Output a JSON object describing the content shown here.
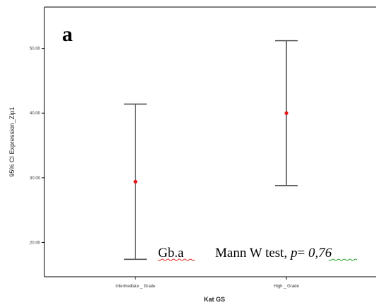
{
  "panel_letter": "a",
  "annotation": {
    "label": "Gb.a",
    "test_prefix": "Mann W test, ",
    "p_symbol": "p",
    "equals": "= ",
    "p_value": "0,76"
  },
  "chart_data": {
    "type": "errorbar",
    "xlabel": "Kat GS",
    "ylabel": "95% CI Expression_Zip1",
    "categories": [
      "Intermediate _ Grade",
      "High _ Grade"
    ],
    "series": [
      {
        "mean": [
          29.4,
          40.0
        ],
        "lower": [
          17.4,
          28.8
        ],
        "upper": [
          41.4,
          51.2
        ],
        "color": "#e5191b"
      }
    ],
    "yticks": [
      "20.00",
      "30.00",
      "40.00",
      "50.00"
    ],
    "ylim": [
      14.7,
      56.4
    ],
    "grid": false
  }
}
